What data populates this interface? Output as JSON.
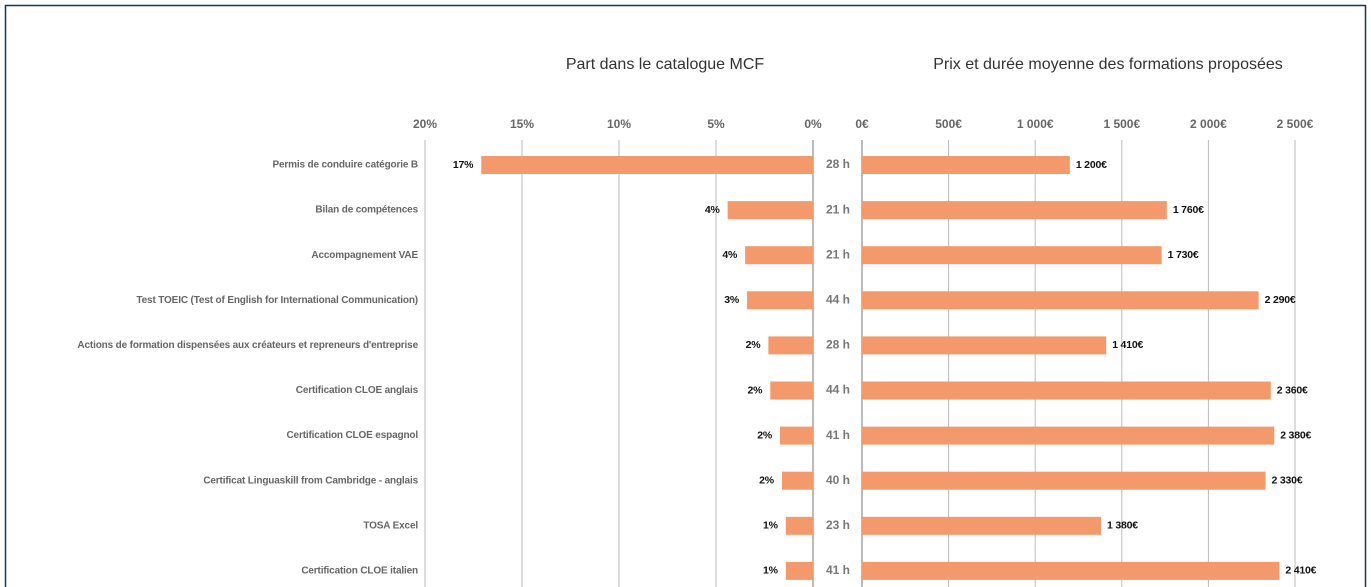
{
  "chart_data": [
    {
      "type": "bar",
      "orientation": "horizontal",
      "title": "Part dans le catalogue MCF",
      "categories": [
        "Permis de conduire catégorie B",
        "Bilan de compétences",
        "Accompagnement VAE",
        "Test TOEIC (Test of English for International Communication)",
        "Actions de formation dispensées aux créateurs et repreneurs d'entreprise",
        "Certification CLOE anglais",
        "Certification CLOE espagnol",
        "Certificat Linguaskill from Cambridge - anglais",
        "TOSA Excel",
        "Certification CLOE italien"
      ],
      "values": [
        17.1,
        4.4,
        3.5,
        3.4,
        2.3,
        2.2,
        1.7,
        1.6,
        1.4,
        1.4
      ],
      "value_labels": [
        "17%",
        "4%",
        "4%",
        "3%",
        "2%",
        "2%",
        "2%",
        "2%",
        "1%",
        "1%"
      ],
      "color": "#f4996b",
      "xlim": [
        0,
        20
      ],
      "x_reversed": true,
      "grid": true,
      "xticks": [
        {
          "value": 20,
          "label": "20%"
        },
        {
          "value": 15,
          "label": "15%"
        },
        {
          "value": 10,
          "label": "10%"
        },
        {
          "value": 5,
          "label": "5%"
        },
        {
          "value": 0,
          "label": "0%"
        }
      ]
    },
    {
      "type": "bar",
      "orientation": "horizontal",
      "title": "Prix et durée moyenne des formations proposées",
      "values": [
        1200,
        1760,
        1730,
        2290,
        1410,
        2360,
        2380,
        2330,
        1380,
        2410
      ],
      "value_labels": [
        "1 200€",
        "1 760€",
        "1 730€",
        "2 290€",
        "1 410€",
        "2 360€",
        "2 380€",
        "2 330€",
        "1 380€",
        "2 410€"
      ],
      "durations": [
        28,
        21,
        21,
        44,
        28,
        44,
        41,
        40,
        23,
        41
      ],
      "duration_labels": [
        "28 h",
        "21 h",
        "21 h",
        "44 h",
        "28 h",
        "44 h",
        "41 h",
        "40 h",
        "23 h",
        "41 h"
      ],
      "color": "#f4996b",
      "xlim": [
        0,
        2500
      ],
      "grid": true,
      "xticks": [
        {
          "value": 0,
          "label": "0€"
        },
        {
          "value": 500,
          "label": "500€"
        },
        {
          "value": 1000,
          "label": "1 000€"
        },
        {
          "value": 1500,
          "label": "1 500€"
        },
        {
          "value": 2000,
          "label": "2 000€"
        },
        {
          "value": 2500,
          "label": "2 500€"
        }
      ]
    }
  ]
}
